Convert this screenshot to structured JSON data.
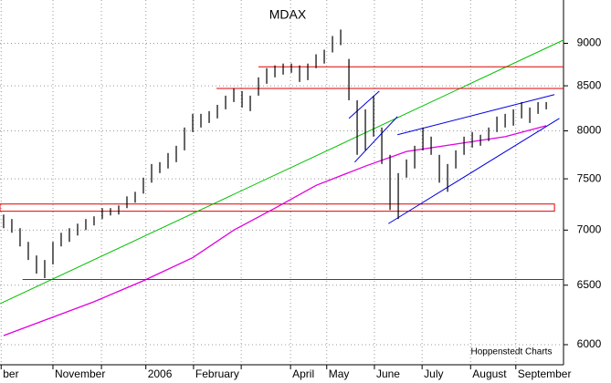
{
  "chart_data": {
    "type": "hilo",
    "title": "MDAX",
    "source": "Hoppenstedt Charts",
    "log": true,
    "grid": true,
    "color": "#000000",
    "ylim": [
      5840,
      9540
    ],
    "yticks": [
      6000,
      6500,
      7000,
      7500,
      8000,
      8500,
      9000
    ],
    "xlim": [
      -0.44,
      68.1
    ],
    "xticks": [
      {
        "value": -0.3,
        "label": "ber"
      },
      {
        "value": 6,
        "label": "November"
      },
      {
        "value": 11.9,
        "label": null
      },
      {
        "value": 17.3,
        "label": "2006"
      },
      {
        "value": 23.1,
        "label": "February"
      },
      {
        "value": 28.9,
        "label": null
      },
      {
        "value": 34.9,
        "label": "April"
      },
      {
        "value": 39.3,
        "label": "May"
      },
      {
        "value": 45.1,
        "label": "June"
      },
      {
        "value": 50.9,
        "label": "July"
      },
      {
        "value": 56.8,
        "label": "August"
      },
      {
        "value": 62.3,
        "label": "September"
      }
    ],
    "high": [
      7148,
      7105,
      7018,
      6890,
      6765,
      6724,
      6890,
      6975,
      7018,
      7061,
      7105,
      7131,
      7210,
      7210,
      7236,
      7325,
      7370,
      7512,
      7651,
      7670,
      7765,
      7841,
      8036,
      8185,
      8185,
      8215,
      8285,
      8388,
      8471,
      8440,
      8388,
      8597,
      8704,
      8737,
      8758,
      8758,
      8737,
      8758,
      8868,
      8923,
      9089,
      9168,
      8813,
      8336,
      8235,
      8388,
      8036,
      7746,
      7558,
      7698,
      7841,
      8036,
      7938,
      7746,
      7651,
      7793,
      7938,
      7987,
      7958,
      8036,
      8155,
      8185,
      8235,
      8316,
      8255,
      8316,
      8316
    ],
    "low": [
      7018,
      6975,
      6848,
      6724,
      6602,
      6562,
      6684,
      6848,
      6890,
      6949,
      7000,
      7044,
      7105,
      7139,
      7148,
      7210,
      7263,
      7352,
      7461,
      7558,
      7605,
      7670,
      7793,
      7987,
      8036,
      8085,
      8135,
      8235,
      8316,
      8255,
      8215,
      8388,
      8523,
      8597,
      8629,
      8650,
      8544,
      8565,
      8704,
      8758,
      8890,
      8978,
      8336,
      7746,
      7793,
      7938,
      7651,
      7192,
      7105,
      7512,
      7605,
      7793,
      7746,
      7461,
      7370,
      7605,
      7746,
      7822,
      7841,
      7890,
      7987,
      8036,
      8056,
      8135,
      8085,
      8185,
      8235
    ],
    "average": {
      "color": "#e000e0",
      "x": [
        0,
        11,
        17,
        23,
        28,
        33,
        38,
        44,
        49,
        55,
        61,
        66
      ],
      "values": [
        6074,
        6357,
        6539,
        6745,
        7000,
        7209,
        7434,
        7629,
        7781,
        7859,
        7938,
        8055
      ]
    },
    "lines": [
      {
        "color": "#00c000",
        "x": [
          -0.44,
          68.1
        ],
        "values": [
          6340,
          9040
        ]
      },
      {
        "color": "#e00000",
        "x": [
          31,
          68.1
        ],
        "values": [
          8720,
          8720
        ]
      },
      {
        "color": "#e00000",
        "x": [
          25.9,
          68.1
        ],
        "values": [
          8470,
          8470
        ]
      },
      {
        "color": "#e00000",
        "x": [
          2.3,
          68.1
        ],
        "values": [
          6550,
          6550
        ]
      },
      {
        "color": "#0000e0",
        "x": [
          42,
          45.7
        ],
        "values": [
          8135,
          8440
        ]
      },
      {
        "color": "#0000e0",
        "x": [
          42.7,
          47.9
        ],
        "values": [
          7670,
          8155
        ]
      },
      {
        "color": "#0000e0",
        "x": [
          47.9,
          67
        ],
        "values": [
          7958,
          8400
        ]
      },
      {
        "color": "#0000e0",
        "x": [
          46.8,
          67.6
        ],
        "values": [
          7061,
          8135
        ]
      }
    ],
    "zone": {
      "color": "#e00000",
      "x": [
        -0.44,
        67
      ],
      "values": [
        7250,
        7180
      ]
    }
  }
}
